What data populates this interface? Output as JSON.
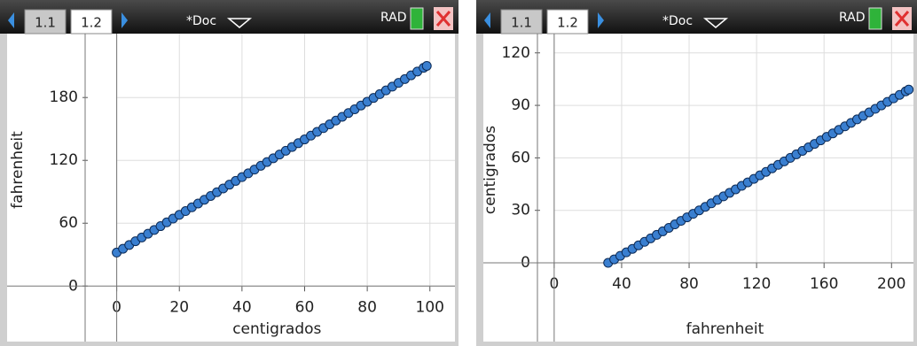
{
  "screens": [
    {
      "tabs": [
        "1.1",
        "1.2"
      ],
      "doc": "*Doc",
      "mode": "RAD"
    },
    {
      "tabs": [
        "1.1",
        "1.2"
      ],
      "doc": "*Doc",
      "mode": "RAD"
    }
  ],
  "chart_data": [
    {
      "type": "scatter",
      "xlabel": "centigrados",
      "ylabel": "fahrenheit",
      "color": "#3a7fd0",
      "grid": true,
      "x": [
        0,
        2,
        4,
        6,
        8,
        10,
        12,
        14,
        16,
        18,
        20,
        22,
        24,
        26,
        28,
        30,
        32,
        34,
        36,
        38,
        40,
        42,
        44,
        46,
        48,
        50,
        52,
        54,
        56,
        58,
        60,
        62,
        64,
        66,
        68,
        70,
        72,
        74,
        76,
        78,
        80,
        82,
        84,
        86,
        88,
        90,
        92,
        94,
        96,
        98,
        99
      ],
      "values": [
        32,
        35.6,
        39.2,
        42.8,
        46.4,
        50,
        53.6,
        57.2,
        60.8,
        64.4,
        68,
        71.6,
        75.2,
        78.8,
        82.4,
        86,
        89.6,
        93.2,
        96.8,
        100.4,
        104,
        107.6,
        111.2,
        114.8,
        118.4,
        122,
        125.6,
        129.2,
        132.8,
        136.4,
        140,
        143.6,
        147.2,
        150.8,
        154.4,
        158,
        161.6,
        165.2,
        168.8,
        172.4,
        176,
        179.6,
        183.2,
        186.8,
        190.4,
        194,
        197.6,
        201.2,
        204.8,
        208.4,
        210.2
      ],
      "xlim": [
        -35,
        108
      ],
      "ylim": [
        -53,
        241
      ],
      "xticks": [
        0,
        20,
        40,
        60,
        80,
        100
      ],
      "yticks": [
        0,
        60,
        120,
        180
      ]
    },
    {
      "type": "scatter",
      "xlabel": "fahrenheit",
      "ylabel": "centigrados",
      "color": "#3a7fd0",
      "grid": true,
      "x": [
        32,
        35.6,
        39.2,
        42.8,
        46.4,
        50,
        53.6,
        57.2,
        60.8,
        64.4,
        68,
        71.6,
        75.2,
        78.8,
        82.4,
        86,
        89.6,
        93.2,
        96.8,
        100.4,
        104,
        107.6,
        111.2,
        114.8,
        118.4,
        122,
        125.6,
        129.2,
        132.8,
        136.4,
        140,
        143.6,
        147.2,
        150.8,
        154.4,
        158,
        161.6,
        165.2,
        168.8,
        172.4,
        176,
        179.6,
        183.2,
        186.8,
        190.4,
        194,
        197.6,
        201.2,
        204.8,
        208.4,
        210.2
      ],
      "values": [
        0,
        2,
        4,
        6,
        8,
        10,
        12,
        14,
        16,
        18,
        20,
        22,
        24,
        26,
        28,
        30,
        32,
        34,
        36,
        38,
        40,
        42,
        44,
        46,
        48,
        50,
        52,
        54,
        56,
        58,
        60,
        62,
        64,
        66,
        68,
        70,
        72,
        74,
        76,
        78,
        80,
        82,
        84,
        86,
        88,
        90,
        92,
        94,
        96,
        98,
        99
      ],
      "xlim": [
        -42,
        213
      ],
      "ylim": [
        -45,
        131
      ],
      "xticks": [
        0,
        40,
        80,
        120,
        160,
        200
      ],
      "yticks": [
        0,
        30,
        60,
        90,
        120
      ]
    }
  ]
}
